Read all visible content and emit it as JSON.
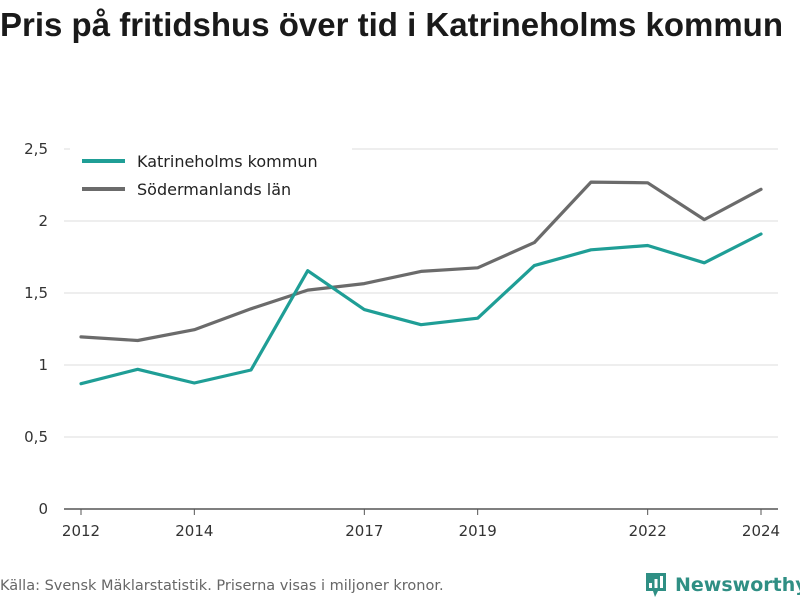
{
  "title": "Pris på fritidshus över tid i Katrineholms kommun",
  "source": "Källa: Svensk Mäklarstatistik. Priserna visas i miljoner kronor.",
  "brand": {
    "name": "Newsworthy",
    "icon": "newsworthy-logo-icon",
    "color": "#2f8f84"
  },
  "chart_data": {
    "type": "line",
    "title": "Pris på fritidshus över tid i Katrineholms kommun",
    "xlabel": "",
    "ylabel": "",
    "x": [
      2012,
      2013,
      2014,
      2015,
      2016,
      2017,
      2018,
      2019,
      2020,
      2021,
      2022,
      2023,
      2024
    ],
    "x_tick_values": [
      2012,
      2014,
      2017,
      2019,
      2022,
      2024
    ],
    "x_ticks": [
      "2012",
      "2014",
      "2017",
      "2019",
      "2022",
      "2024"
    ],
    "y_tick_values": [
      0,
      0.5,
      1,
      1.5,
      2,
      2.5
    ],
    "y_ticks": [
      "0",
      "0,5",
      "1",
      "1,5",
      "2",
      "2,5"
    ],
    "ylim": [
      0,
      2.5
    ],
    "xlim": [
      2011.7,
      2024.3
    ],
    "grid": true,
    "legend_position": "top-left",
    "series": [
      {
        "name": "Katrineholms kommun",
        "color": "#1f9e96",
        "values": [
          0.87,
          0.97,
          0.875,
          0.965,
          1.655,
          1.385,
          1.28,
          1.325,
          1.69,
          1.8,
          1.83,
          1.71,
          1.91
        ]
      },
      {
        "name": "Södermanlands län",
        "color": "#6b6b6b",
        "values": [
          1.195,
          1.17,
          1.245,
          1.39,
          1.52,
          1.565,
          1.65,
          1.675,
          1.85,
          2.27,
          2.265,
          2.01,
          2.22
        ]
      }
    ]
  }
}
